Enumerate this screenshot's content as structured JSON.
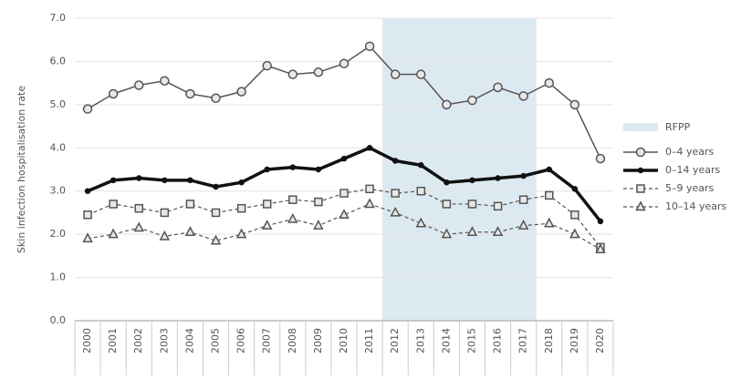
{
  "chart_data": {
    "type": "line",
    "y_label": "Skin infection hospitalisation rate",
    "categories": [
      "2000",
      "2001",
      "2002",
      "2003",
      "2004",
      "2005",
      "2006",
      "2007",
      "2008",
      "2009",
      "2010",
      "2011",
      "2012",
      "2013",
      "2014",
      "2015",
      "2016",
      "2017",
      "2018",
      "2019",
      "2020"
    ],
    "shaded_region": {
      "name": "RFPP",
      "start": "2012",
      "end": "2017",
      "color": "#dde9f1"
    },
    "series": [
      {
        "name": "0–4 years",
        "color": "#555555",
        "marker": "circle",
        "dash": "solid",
        "width": 1.5,
        "values": [
          4.9,
          5.25,
          5.45,
          5.55,
          5.25,
          5.15,
          5.3,
          5.9,
          5.7,
          5.75,
          5.95,
          6.35,
          5.7,
          5.7,
          5.0,
          5.1,
          5.4,
          5.2,
          5.5,
          5.0,
          3.75
        ]
      },
      {
        "name": "0–14 years",
        "color": "#111111",
        "marker": "dot",
        "dash": "solid",
        "width": 3.5,
        "values": [
          3.0,
          3.25,
          3.3,
          3.25,
          3.25,
          3.1,
          3.2,
          3.5,
          3.55,
          3.5,
          3.75,
          4.0,
          3.7,
          3.6,
          3.2,
          3.25,
          3.3,
          3.35,
          3.5,
          3.05,
          2.3
        ]
      },
      {
        "name": "5–9 years",
        "color": "#555555",
        "marker": "square",
        "dash": "dashed",
        "width": 1.2,
        "values": [
          2.45,
          2.7,
          2.6,
          2.5,
          2.7,
          2.5,
          2.6,
          2.7,
          2.8,
          2.75,
          2.95,
          3.05,
          2.95,
          3.0,
          2.7,
          2.7,
          2.65,
          2.8,
          2.9,
          2.45,
          1.7
        ]
      },
      {
        "name": "10–14 years",
        "color": "#555555",
        "marker": "triangle",
        "dash": "dashed",
        "width": 1.2,
        "values": [
          1.9,
          2.0,
          2.15,
          1.95,
          2.05,
          1.85,
          2.0,
          2.2,
          2.35,
          2.2,
          2.45,
          2.7,
          2.5,
          2.25,
          2.0,
          2.05,
          2.05,
          2.2,
          2.25,
          2.0,
          1.65
        ]
      }
    ],
    "ylim": [
      0,
      7
    ],
    "yticks": [
      {
        "value": 0,
        "label": "0.0"
      },
      {
        "value": 1,
        "label": "1.0"
      },
      {
        "value": 2,
        "label": "2.0"
      },
      {
        "value": 3,
        "label": "3.0"
      },
      {
        "value": 4,
        "label": "4.0"
      },
      {
        "value": 5,
        "label": "5.0"
      },
      {
        "value": 6,
        "label": "6.0"
      },
      {
        "value": 7,
        "label": "7.0"
      }
    ],
    "grid": true
  }
}
